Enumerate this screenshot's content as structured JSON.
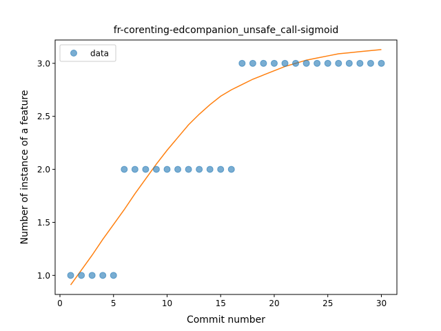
{
  "chart_data": {
    "type": "scatter",
    "title": "fr-corenting-edcompanion_unsafe_call-sigmoid",
    "xlabel": "Commit number",
    "ylabel": "Number of instance of a feature",
    "xlim": [
      -0.45,
      31.45
    ],
    "ylim": [
      0.82,
      3.22
    ],
    "xticks": [
      0,
      5,
      10,
      15,
      20,
      25,
      30
    ],
    "yticks": [
      1.0,
      1.5,
      2.0,
      2.5,
      3.0
    ],
    "ytick_labels": [
      "1.0",
      "1.5",
      "2.0",
      "2.5",
      "3.0"
    ],
    "grid": false,
    "legend": {
      "location": "upper left",
      "entries": [
        "data"
      ]
    },
    "colors": {
      "data": "#1f77b4",
      "fit": "#ff7f0e"
    },
    "series": [
      {
        "name": "data",
        "kind": "points",
        "x": [
          1,
          2,
          3,
          4,
          5,
          6,
          7,
          8,
          9,
          10,
          11,
          12,
          13,
          14,
          15,
          16,
          17,
          18,
          19,
          20,
          21,
          22,
          23,
          24,
          25,
          26,
          27,
          28,
          29,
          30
        ],
        "y": [
          1,
          1,
          1,
          1,
          1,
          2,
          2,
          2,
          2,
          2,
          2,
          2,
          2,
          2,
          2,
          2,
          3,
          3,
          3,
          3,
          3,
          3,
          3,
          3,
          3,
          3,
          3,
          3,
          3,
          3
        ]
      },
      {
        "kind": "line",
        "x": [
          1,
          2,
          3,
          4,
          5,
          6,
          7,
          8,
          9,
          10,
          11,
          12,
          13,
          14,
          15,
          16,
          17,
          18,
          19,
          20,
          21,
          22,
          23,
          24,
          25,
          26,
          27,
          28,
          29,
          30
        ],
        "y": [
          0.91,
          1.05,
          1.19,
          1.34,
          1.48,
          1.62,
          1.77,
          1.91,
          2.05,
          2.18,
          2.3,
          2.42,
          2.52,
          2.61,
          2.69,
          2.75,
          2.8,
          2.85,
          2.89,
          2.93,
          2.97,
          3.0,
          3.03,
          3.05,
          3.07,
          3.09,
          3.1,
          3.11,
          3.12,
          3.13
        ]
      }
    ]
  }
}
